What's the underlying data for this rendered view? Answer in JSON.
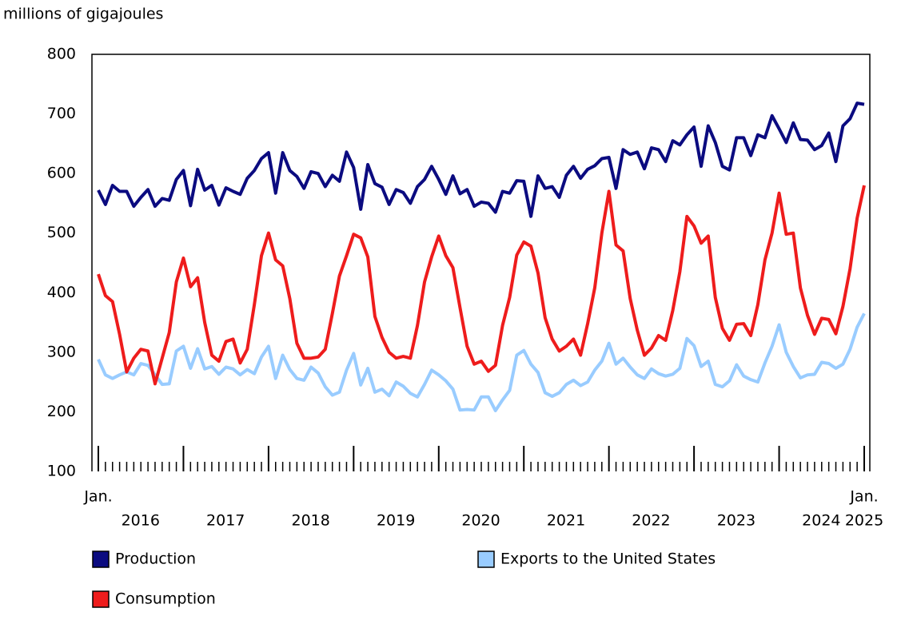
{
  "chart_data": {
    "type": "line",
    "y_label": "millions of gigajoules",
    "categories": [
      null,
      null,
      null,
      null,
      null,
      null,
      null,
      null,
      null,
      null,
      null,
      null,
      null,
      null,
      null,
      null,
      null,
      null,
      null,
      null,
      null,
      null,
      null,
      null,
      null,
      null,
      null,
      null,
      null,
      null,
      null,
      null,
      null,
      null,
      null,
      null,
      null,
      null,
      null,
      null,
      null,
      null,
      null,
      null,
      null,
      null,
      null,
      null,
      null,
      null,
      null,
      null,
      null,
      null,
      null,
      null,
      null,
      null,
      null,
      null,
      null,
      null,
      null,
      null,
      null,
      null,
      null,
      null,
      null,
      null,
      null,
      null,
      null,
      null,
      null,
      null,
      null,
      null,
      null,
      null,
      null,
      null,
      null,
      null,
      null,
      null,
      null,
      null,
      null,
      null,
      null,
      null,
      null,
      null,
      null,
      null,
      null,
      null,
      null,
      null,
      null,
      null,
      null,
      null,
      null,
      null,
      null,
      null,
      null
    ],
    "x_edge_labels": [
      "Jan.",
      "Jan."
    ],
    "x_group_labels": [
      "2016",
      "2017",
      "2018",
      "2019",
      "2020",
      "2021",
      "2022",
      "2023",
      "2024",
      "2025"
    ],
    "ylim": [
      100,
      800
    ],
    "yticks": [
      100,
      200,
      300,
      400,
      500,
      600,
      700,
      800
    ],
    "grid": false,
    "series": [
      {
        "name": "Production",
        "color": "#0b0b80",
        "values": [
          572,
          548,
          580,
          570,
          570,
          545,
          560,
          573,
          545,
          558,
          555,
          590,
          605,
          546,
          607,
          572,
          580,
          547,
          576,
          570,
          565,
          592,
          605,
          625,
          635,
          567,
          635,
          605,
          595,
          575,
          603,
          600,
          578,
          597,
          587,
          636,
          610,
          540,
          615,
          583,
          577,
          548,
          573,
          568,
          550,
          578,
          590,
          612,
          590,
          565,
          596,
          566,
          573,
          545,
          552,
          550,
          535,
          570,
          567,
          588,
          587,
          528,
          596,
          575,
          578,
          560,
          597,
          612,
          592,
          607,
          613,
          625,
          627,
          575,
          640,
          632,
          636,
          608,
          643,
          640,
          620,
          655,
          648,
          665,
          678,
          612,
          680,
          652,
          612,
          606,
          660,
          660,
          630,
          665,
          660,
          697,
          675,
          652,
          685,
          657,
          656,
          640,
          647,
          668,
          620,
          680,
          692,
          718,
          716
        ]
      },
      {
        "name": "Exports to the United States",
        "color": "#99ccff",
        "values": [
          288,
          262,
          256,
          262,
          267,
          262,
          281,
          278,
          262,
          246,
          247,
          302,
          310,
          273,
          306,
          272,
          276,
          263,
          275,
          272,
          262,
          271,
          264,
          292,
          310,
          256,
          295,
          271,
          256,
          253,
          275,
          265,
          242,
          228,
          233,
          270,
          298,
          245,
          273,
          233,
          238,
          227,
          250,
          243,
          231,
          225,
          246,
          270,
          262,
          252,
          238,
          203,
          204,
          203,
          225,
          225,
          202,
          220,
          236,
          295,
          303,
          280,
          266,
          232,
          226,
          232,
          246,
          253,
          244,
          250,
          270,
          285,
          315,
          280,
          290,
          275,
          262,
          256,
          272,
          264,
          260,
          263,
          273,
          323,
          311,
          276,
          285,
          246,
          242,
          252,
          279,
          260,
          254,
          250,
          282,
          310,
          346,
          300,
          276,
          257,
          262,
          263,
          283,
          281,
          273,
          280,
          305,
          342,
          365
        ]
      },
      {
        "name": "Consumption",
        "color": "#ee1c1c",
        "values": [
          431,
          395,
          385,
          330,
          267,
          290,
          305,
          302,
          247,
          290,
          333,
          418,
          458,
          410,
          425,
          350,
          295,
          285,
          318,
          322,
          282,
          305,
          380,
          462,
          500,
          455,
          445,
          390,
          315,
          290,
          290,
          292,
          305,
          365,
          428,
          462,
          498,
          492,
          460,
          360,
          325,
          300,
          290,
          293,
          290,
          345,
          418,
          460,
          495,
          462,
          442,
          375,
          310,
          280,
          285,
          268,
          278,
          345,
          392,
          463,
          485,
          478,
          433,
          358,
          322,
          302,
          310,
          322,
          295,
          348,
          408,
          500,
          570,
          480,
          470,
          390,
          337,
          295,
          307,
          328,
          320,
          370,
          435,
          528,
          512,
          483,
          495,
          392,
          340,
          320,
          347,
          348,
          328,
          380,
          455,
          500,
          567,
          498,
          500,
          408,
          362,
          330,
          357,
          355,
          331,
          377,
          440,
          525,
          580
        ]
      }
    ]
  }
}
